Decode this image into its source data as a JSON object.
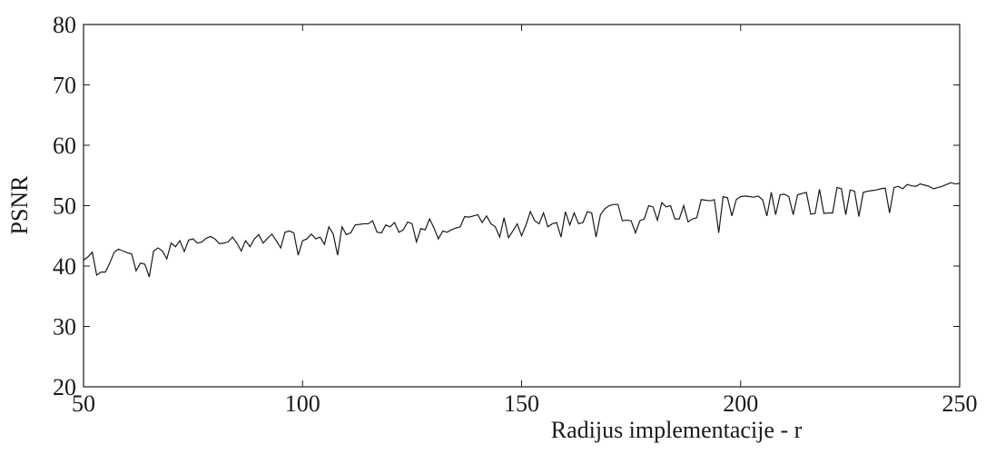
{
  "chart_data": {
    "type": "line",
    "xlabel": "Radijus implementacije - r",
    "ylabel": "PSNR",
    "color": "#1a1a1a",
    "xlim": [
      50,
      250
    ],
    "xticks": [
      50,
      100,
      150,
      200,
      250
    ],
    "ylim": [
      20,
      80
    ],
    "yticks": [
      20,
      30,
      40,
      50,
      60,
      70,
      80
    ],
    "grid": false,
    "x": [
      50,
      51,
      52,
      53,
      54,
      55,
      56,
      57,
      58,
      59,
      60,
      61,
      62,
      63,
      64,
      65,
      66,
      67,
      68,
      69,
      70,
      71,
      72,
      73,
      74,
      75,
      76,
      77,
      78,
      79,
      80,
      81,
      82,
      83,
      84,
      85,
      86,
      87,
      88,
      89,
      90,
      91,
      92,
      93,
      94,
      95,
      96,
      97,
      98,
      99,
      100,
      101,
      102,
      103,
      104,
      105,
      106,
      107,
      108,
      109,
      110,
      111,
      112,
      113,
      114,
      115,
      116,
      117,
      118,
      119,
      120,
      121,
      122,
      123,
      124,
      125,
      126,
      127,
      128,
      129,
      130,
      131,
      132,
      133,
      134,
      135,
      136,
      137,
      138,
      139,
      140,
      141,
      142,
      143,
      144,
      145,
      146,
      147,
      148,
      149,
      150,
      151,
      152,
      153,
      154,
      155,
      156,
      157,
      158,
      159,
      160,
      161,
      162,
      163,
      164,
      165,
      166,
      167,
      168,
      169,
      170,
      171,
      172,
      173,
      174,
      175,
      176,
      177,
      178,
      179,
      180,
      181,
      182,
      183,
      184,
      185,
      186,
      187,
      188,
      189,
      190,
      191,
      192,
      193,
      194,
      195,
      196,
      197,
      198,
      199,
      200,
      201,
      202,
      203,
      204,
      205,
      206,
      207,
      208,
      209,
      210,
      211,
      212,
      213,
      214,
      215,
      216,
      217,
      218,
      219,
      220,
      221,
      222,
      223,
      224,
      225,
      226,
      227,
      228,
      229,
      230,
      231,
      232,
      233,
      234,
      235,
      236,
      237,
      238,
      239,
      240,
      241,
      242,
      243,
      244,
      245,
      246,
      247,
      248,
      249,
      250
    ],
    "values": [
      41.0,
      41.5,
      42.3,
      38.5,
      39.0,
      39.0,
      40.5,
      42.3,
      42.8,
      42.5,
      42.2,
      42.0,
      39.2,
      40.5,
      40.3,
      38.2,
      42.5,
      43.0,
      42.5,
      41.2,
      43.8,
      43.2,
      44.2,
      42.4,
      44.3,
      44.5,
      43.8,
      44.0,
      44.6,
      44.9,
      44.5,
      43.7,
      43.8,
      44.0,
      44.8,
      43.8,
      42.5,
      44.2,
      43.2,
      44.5,
      45.2,
      43.8,
      44.6,
      45.3,
      44.2,
      43.0,
      45.6,
      45.8,
      45.5,
      41.8,
      44.2,
      44.5,
      45.3,
      44.5,
      44.8,
      43.6,
      46.5,
      45.3,
      41.8,
      46.5,
      45.2,
      45.5,
      46.8,
      46.9,
      47.0,
      47.0,
      47.5,
      45.6,
      45.5,
      46.8,
      46.5,
      47.2,
      45.6,
      46.0,
      47.3,
      47.0,
      44.0,
      46.2,
      46.0,
      47.8,
      46.3,
      44.5,
      45.8,
      45.6,
      46.0,
      46.3,
      46.5,
      48.2,
      48.1,
      48.3,
      48.5,
      47.2,
      48.3,
      47.0,
      46.5,
      44.8,
      48.0,
      44.7,
      45.8,
      47.0,
      45.0,
      46.8,
      49.0,
      47.5,
      47.0,
      48.8,
      46.5,
      47.0,
      47.2,
      44.8,
      49.0,
      46.8,
      48.8,
      47.0,
      47.2,
      49.0,
      48.8,
      44.8,
      48.5,
      49.5,
      50.0,
      50.2,
      50.2,
      47.5,
      47.6,
      47.5,
      45.5,
      47.5,
      47.8,
      50.0,
      49.8,
      47.6,
      50.5,
      49.8,
      50.0,
      47.8,
      47.8,
      50.0,
      47.3,
      47.8,
      48.0,
      51.0,
      50.9,
      50.8,
      51.0,
      45.5,
      51.5,
      51.3,
      48.3,
      51.0,
      51.5,
      51.6,
      51.5,
      51.4,
      51.6,
      51.0,
      48.3,
      52.2,
      48.5,
      51.8,
      51.9,
      51.5,
      48.5,
      51.8,
      52.0,
      52.2,
      48.6,
      48.7,
      52.7,
      48.7,
      48.8,
      48.8,
      53.0,
      52.8,
      48.5,
      52.6,
      52.4,
      48.2,
      52.2,
      52.4,
      52.5,
      52.6,
      52.8,
      52.9,
      48.8,
      53.0,
      53.2,
      52.8,
      53.5,
      53.3,
      53.2,
      53.6,
      53.4,
      53.2,
      52.8,
      53.0,
      53.2,
      53.5,
      53.8,
      53.6,
      53.7
    ]
  }
}
